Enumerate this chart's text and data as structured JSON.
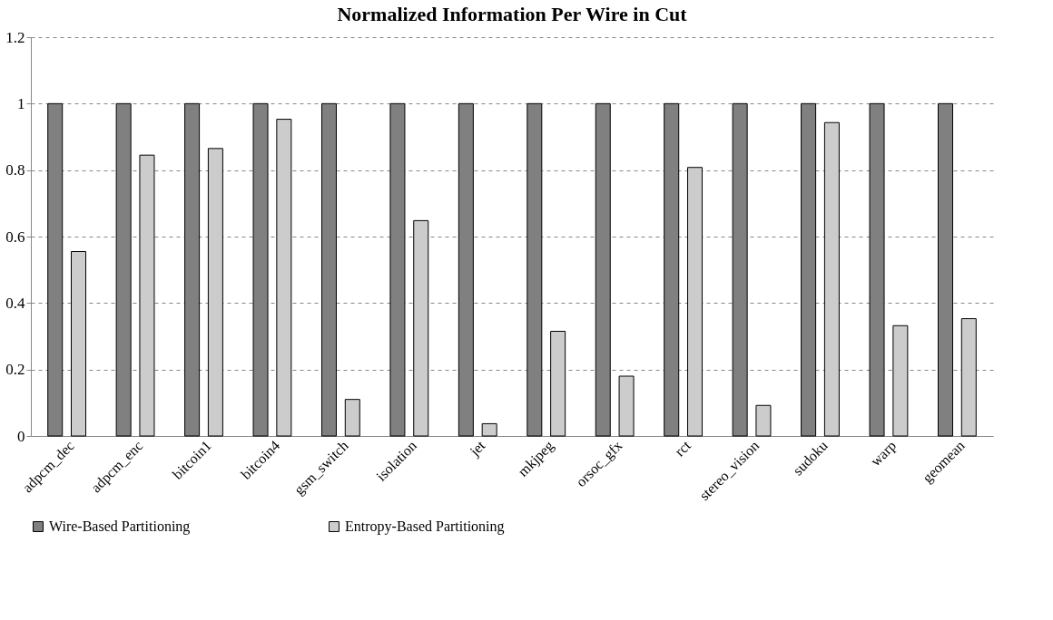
{
  "chart_data": {
    "type": "bar",
    "title": "Normalized Information Per Wire in Cut",
    "categories": [
      "adpcm_dec",
      "adpcm_enc",
      "bitcoin1",
      "bitcoin4",
      "gsm_switch",
      "isolation",
      "jet",
      "mkjpeg",
      "orsoc_gfx",
      "rct",
      "stereo_vision",
      "sudoku",
      "warp",
      "geomean"
    ],
    "series": [
      {
        "name": "Wire-Based Partitioning",
        "color": "#808080",
        "values": [
          1,
          1,
          1,
          1,
          1,
          1,
          1,
          1,
          1,
          1,
          1,
          1,
          1,
          1
        ]
      },
      {
        "name": "Entropy-Based Partitioning",
        "color": "#cccccc",
        "values": [
          0.555,
          0.845,
          0.865,
          0.953,
          0.11,
          0.648,
          0.037,
          0.315,
          0.18,
          0.808,
          0.092,
          0.943,
          0.332,
          0.353
        ]
      }
    ],
    "ylim": [
      0,
      1.2
    ],
    "yticks": [
      0,
      0.2,
      0.4,
      0.6,
      0.8,
      1,
      1.2
    ],
    "grid": "y",
    "legend": "bottom"
  }
}
